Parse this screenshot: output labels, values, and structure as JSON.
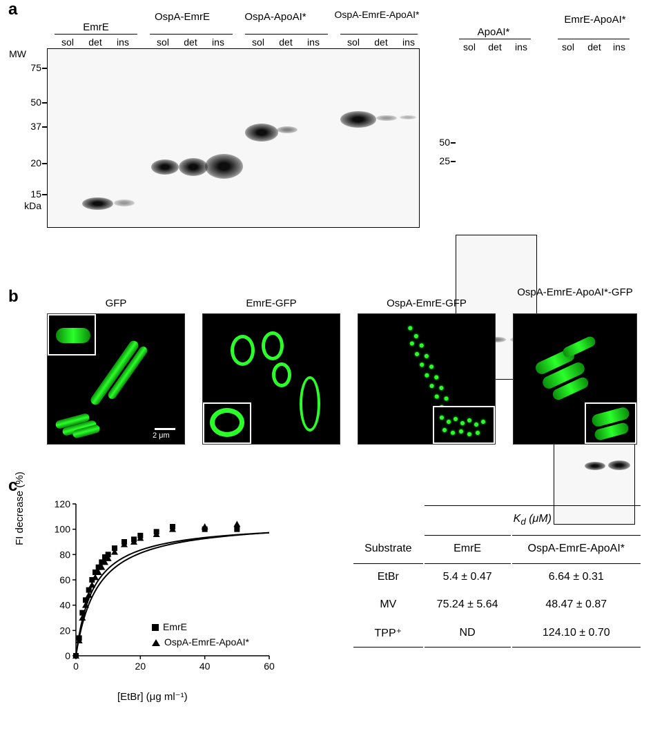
{
  "panelA": {
    "label": "a",
    "mw_title": "MW",
    "kda": "kDa",
    "fractions": [
      "sol",
      "det",
      "ins"
    ],
    "mw_markers": [
      "75",
      "50",
      "37",
      "20",
      "15"
    ],
    "constructs_left": [
      "EmrE",
      "OspA-EmrE",
      "OspA-ApoAI*",
      "OspA-EmrE-ApoAI*"
    ],
    "constructs_right": [
      "ApoAI*",
      "EmrE-ApoAI*"
    ],
    "mw_right": [
      "50",
      "25"
    ]
  },
  "panelB": {
    "label": "b",
    "titles": [
      "GFP",
      "EmrE-GFP",
      "OspA-EmrE-GFP",
      "OspA-EmrE-ApoAI*-GFP"
    ],
    "scalebar": "2 μm"
  },
  "panelC": {
    "label": "c",
    "chart": {
      "type": "scatter-fit",
      "xlabel": "[EtBr] (μg ml⁻¹)",
      "ylabel": "FI decrease (%)",
      "xlim": [
        0,
        60
      ],
      "xtick_step": 20,
      "ylim": [
        0,
        120
      ],
      "ytick_step": 20,
      "background_color": "#ffffff",
      "series": [
        {
          "name": "EmrE",
          "marker": "square",
          "marker_size": 8,
          "color": "#000000",
          "x": [
            0,
            1,
            2,
            3,
            4,
            5,
            6,
            7,
            8,
            9,
            10,
            12,
            15,
            18,
            20,
            25,
            30,
            40,
            50
          ],
          "y": [
            0,
            14,
            34,
            44,
            52,
            60,
            66,
            70,
            74,
            78,
            80,
            85,
            90,
            92,
            95,
            98,
            102,
            100,
            100
          ],
          "fit": {
            "type": "saturation",
            "kd": 5.4,
            "max": 106
          }
        },
        {
          "name": "OspA-EmrE-ApoAI*",
          "marker": "triangle",
          "marker_size": 8,
          "color": "#000000",
          "x": [
            0,
            1,
            2,
            3,
            4,
            5,
            6,
            7,
            8,
            9,
            10,
            12,
            15,
            18,
            20,
            25,
            30,
            40,
            50
          ],
          "y": [
            0,
            12,
            30,
            40,
            48,
            56,
            62,
            66,
            70,
            74,
            77,
            82,
            88,
            90,
            93,
            96,
            100,
            102,
            104
          ],
          "fit": {
            "type": "saturation",
            "kd": 6.64,
            "max": 108
          }
        }
      ],
      "legend": [
        "EmrE",
        "OspA-EmrE-ApoAI*"
      ]
    },
    "table": {
      "kd_header": "Kd (μM)",
      "kd_sub": "d",
      "substrate_header": "Substrate",
      "columns": [
        "EmrE",
        "OspA-EmrE-ApoAI*"
      ],
      "rows": [
        {
          "substrate": "EtBr",
          "vals": [
            "5.4 ± 0.47",
            "6.64 ± 0.31"
          ]
        },
        {
          "substrate": "MV",
          "vals": [
            "75.24 ± 5.64",
            "48.47 ± 0.87"
          ]
        },
        {
          "substrate": "TPP⁺",
          "vals": [
            "ND",
            "124.10 ± 0.70"
          ]
        }
      ]
    }
  }
}
